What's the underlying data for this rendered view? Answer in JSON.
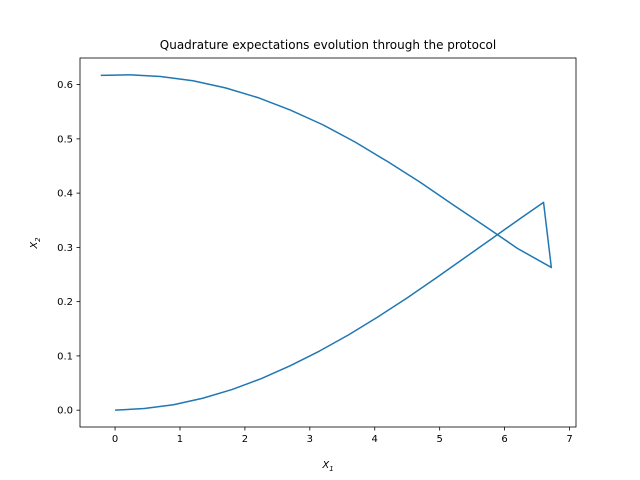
{
  "chart_data": {
    "type": "line",
    "title": "Quadrature expectations evolution through the protocol",
    "xlabel": {
      "base": "X",
      "sub": "1"
    },
    "ylabel": {
      "base": "X",
      "sub": "2"
    },
    "xlim": [
      -0.54,
      7.1
    ],
    "ylim": [
      -0.031,
      0.649
    ],
    "x_ticks": [
      0,
      1,
      2,
      3,
      4,
      5,
      6,
      7
    ],
    "y_ticks": [
      0.0,
      0.1,
      0.2,
      0.3,
      0.4,
      0.5,
      0.6
    ],
    "x_tick_labels": [
      "0",
      "1",
      "2",
      "3",
      "4",
      "5",
      "6",
      "7"
    ],
    "y_tick_labels": [
      "0.0",
      "0.1",
      "0.2",
      "0.3",
      "0.4",
      "0.5",
      "0.6"
    ],
    "grid": false,
    "series": [
      {
        "color": "#1f77b4",
        "points": [
          [
            0.0,
            0.0
          ],
          [
            0.45,
            0.003
          ],
          [
            0.9,
            0.01
          ],
          [
            1.35,
            0.022
          ],
          [
            1.8,
            0.038
          ],
          [
            2.25,
            0.058
          ],
          [
            2.7,
            0.082
          ],
          [
            3.15,
            0.109
          ],
          [
            3.6,
            0.139
          ],
          [
            4.05,
            0.172
          ],
          [
            4.5,
            0.207
          ],
          [
            4.95,
            0.244
          ],
          [
            5.4,
            0.282
          ],
          [
            5.85,
            0.32
          ],
          [
            6.25,
            0.354
          ],
          [
            6.6,
            0.383
          ],
          [
            6.72,
            0.263
          ],
          [
            6.2,
            0.298
          ],
          [
            5.7,
            0.339
          ],
          [
            5.2,
            0.379
          ],
          [
            4.7,
            0.42
          ],
          [
            4.2,
            0.458
          ],
          [
            3.7,
            0.494
          ],
          [
            3.2,
            0.526
          ],
          [
            2.7,
            0.553
          ],
          [
            2.2,
            0.576
          ],
          [
            1.7,
            0.594
          ],
          [
            1.2,
            0.607
          ],
          [
            0.7,
            0.615
          ],
          [
            0.25,
            0.618
          ],
          [
            -0.22,
            0.617
          ]
        ]
      }
    ]
  }
}
